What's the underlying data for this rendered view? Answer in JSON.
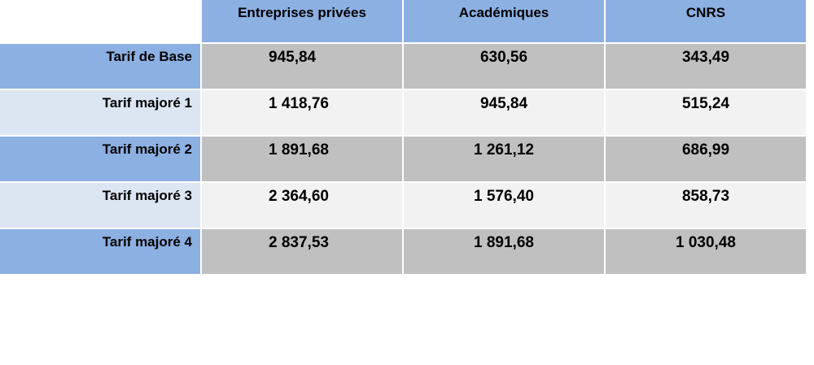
{
  "table": {
    "columns": [
      "Entreprises privées",
      "Académiques",
      "CNRS"
    ],
    "rows": [
      {
        "label": "Tarif de Base",
        "values": [
          "945,84",
          "630,56",
          "343,49"
        ]
      },
      {
        "label": "Tarif majoré 1",
        "values": [
          "1 418,76",
          "945,84",
          "515,24"
        ]
      },
      {
        "label": "Tarif majoré 2",
        "values": [
          "1 891,68",
          "1 261,12",
          "686,99"
        ]
      },
      {
        "label": "Tarif majoré 3",
        "values": [
          "2 364,60",
          "1 576,40",
          "858,73"
        ]
      },
      {
        "label": "Tarif majoré 4",
        "values": [
          "2 837,53",
          "1 891,68",
          "1 030,48"
        ]
      }
    ]
  },
  "colors": {
    "header_blue": "#8db0e2",
    "label_light_blue": "#dce6f2",
    "value_dark_gray": "#c0c0c0",
    "value_light_gray": "#f2f2f2"
  }
}
